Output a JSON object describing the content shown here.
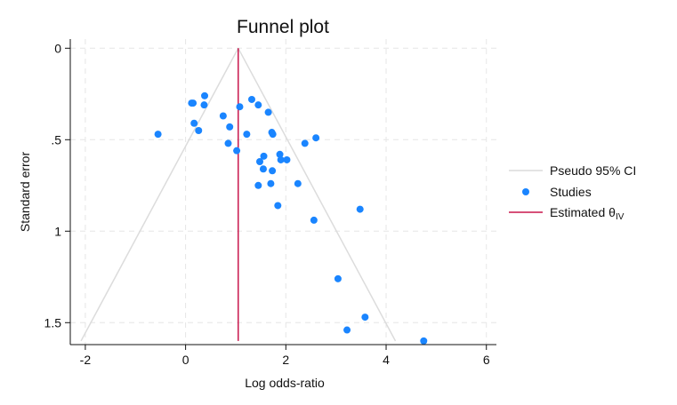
{
  "chart_data": {
    "type": "scatter",
    "title": "Funnel plot",
    "xlabel": "Log odds-ratio",
    "ylabel": "Standard error",
    "xlim": [
      -2.3,
      6.2
    ],
    "ylim": [
      1.62,
      -0.05
    ],
    "y_reversed": true,
    "xticks": [
      -2,
      0,
      2,
      4,
      6
    ],
    "xtick_labels": [
      "-2",
      "0",
      "2",
      "4",
      "6"
    ],
    "yticks": [
      0,
      0.5,
      1,
      1.5
    ],
    "ytick_labels": [
      "0",
      ".5",
      "1",
      "1.5"
    ],
    "grid": true,
    "legend_position": "right",
    "estimate": 1.05,
    "ci_multiplier": 1.96,
    "se_max": 1.6,
    "legend": [
      {
        "label": "Pseudo 95% CI",
        "kind": "line",
        "color": "#dcdcdc"
      },
      {
        "label": "Studies",
        "kind": "marker",
        "color": "#1a85ff"
      },
      {
        "label_main": "Estimated θ",
        "label_sub": "IV",
        "kind": "line",
        "color": "#c8174c"
      }
    ],
    "series": [
      {
        "name": "Studies",
        "color": "#1a85ff",
        "points": [
          [
            -0.55,
            0.47
          ],
          [
            0.12,
            0.3
          ],
          [
            0.15,
            0.3
          ],
          [
            0.38,
            0.26
          ],
          [
            0.37,
            0.31
          ],
          [
            0.17,
            0.41
          ],
          [
            0.26,
            0.45
          ],
          [
            0.75,
            0.37
          ],
          [
            0.88,
            0.43
          ],
          [
            0.85,
            0.52
          ],
          [
            1.02,
            0.56
          ],
          [
            1.08,
            0.32
          ],
          [
            1.32,
            0.28
          ],
          [
            1.45,
            0.31
          ],
          [
            1.65,
            0.35
          ],
          [
            1.22,
            0.47
          ],
          [
            1.72,
            0.46
          ],
          [
            1.74,
            0.47
          ],
          [
            1.88,
            0.58
          ],
          [
            1.9,
            0.61
          ],
          [
            2.02,
            0.61
          ],
          [
            1.56,
            0.59
          ],
          [
            1.48,
            0.62
          ],
          [
            1.55,
            0.66
          ],
          [
            1.73,
            0.67
          ],
          [
            2.38,
            0.52
          ],
          [
            2.6,
            0.49
          ],
          [
            1.45,
            0.75
          ],
          [
            1.7,
            0.74
          ],
          [
            2.24,
            0.74
          ],
          [
            1.84,
            0.86
          ],
          [
            2.56,
            0.94
          ],
          [
            3.48,
            0.88
          ],
          [
            3.04,
            1.26
          ],
          [
            3.58,
            1.47
          ],
          [
            3.22,
            1.54
          ],
          [
            4.75,
            1.6
          ]
        ]
      }
    ]
  }
}
